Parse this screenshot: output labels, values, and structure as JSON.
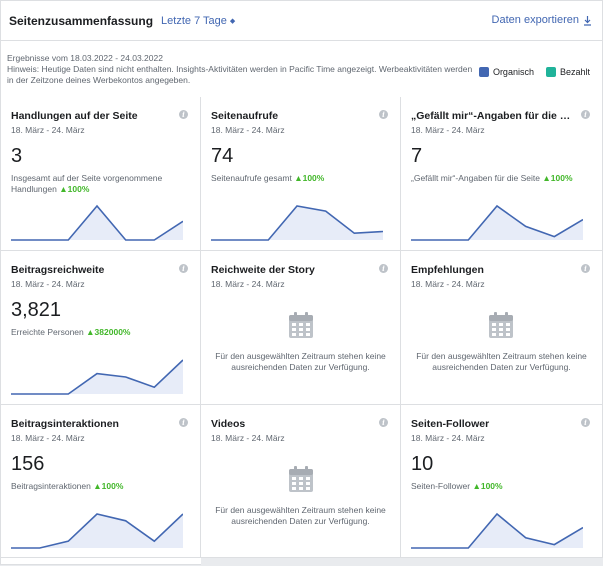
{
  "header": {
    "title": "Seitenzusammenfassung",
    "period": "Letzte 7 Tage",
    "export": "Daten exportieren"
  },
  "info": {
    "line1": "Ergebnisse vom 18.03.2022 - 24.03.2022",
    "line2": "Hinweis: Heutige Daten sind nicht enthalten. Insights-Aktivitäten werden in Pacific Time angezeigt. Werbeaktivitäten werden in der Zeitzone deines Werbekontos angegeben."
  },
  "legend": [
    {
      "label": "Organisch",
      "color": "#4267b2"
    },
    {
      "label": "Bezahlt",
      "color": "#20b39a"
    }
  ],
  "colors": {
    "accent": "#4267b2",
    "positive": "#42b72a",
    "spark_fill": "#e7ecf8"
  },
  "cards": [
    {
      "title": "Handlungen auf der Seite",
      "date": "18. März - 24. März",
      "value": "3",
      "desc": "Insgesamt auf der Seite vorgenommene Handlungen",
      "change": "▲100%",
      "spark": [
        0,
        0,
        0,
        1,
        0,
        0,
        0.55
      ]
    },
    {
      "title": "Seitenaufrufe",
      "date": "18. März - 24. März",
      "value": "74",
      "desc": "Seitenaufrufe gesamt",
      "change": "▲100%",
      "spark": [
        0,
        0,
        0,
        1,
        0.85,
        0.2,
        0.25
      ]
    },
    {
      "title": "„Gefällt mir“-Angaben für die Seite",
      "date": "18. März - 24. März",
      "value": "7",
      "desc": "„Gefällt mir“-Angaben für die Seite",
      "change": "▲100%",
      "spark": [
        0,
        0,
        0,
        1,
        0.4,
        0.1,
        0.6
      ]
    },
    {
      "title": "Beitragsreichweite",
      "date": "18. März - 24. März",
      "value": "3,821",
      "desc": "Erreichte Personen",
      "change": "▲382000%",
      "spark": [
        0,
        0,
        0,
        0.6,
        0.5,
        0.2,
        1
      ]
    },
    {
      "title": "Reichweite der Story",
      "date": "18. März - 24. März",
      "nodata": "Für den ausgewählten Zeitraum stehen keine ausreichenden Daten zur Verfügung."
    },
    {
      "title": "Empfehlungen",
      "date": "18. März - 24. März",
      "nodata": "Für den ausgewählten Zeitraum stehen keine ausreichenden Daten zur Verfügung."
    },
    {
      "title": "Beitragsinteraktionen",
      "date": "18. März - 24. März",
      "value": "156",
      "desc": "Beitragsinteraktionen",
      "change": "▲100%",
      "spark": [
        0,
        0,
        0.2,
        1,
        0.8,
        0.2,
        1
      ]
    },
    {
      "title": "Videos",
      "date": "18. März - 24. März",
      "nodata": "Für den ausgewählten Zeitraum stehen keine ausreichenden Daten zur Verfügung."
    },
    {
      "title": "Seiten-Follower",
      "date": "18. März - 24. März",
      "value": "10",
      "desc": "Seiten-Follower",
      "change": "▲100%",
      "spark": [
        0,
        0,
        0,
        1,
        0.3,
        0.1,
        0.6
      ]
    }
  ]
}
